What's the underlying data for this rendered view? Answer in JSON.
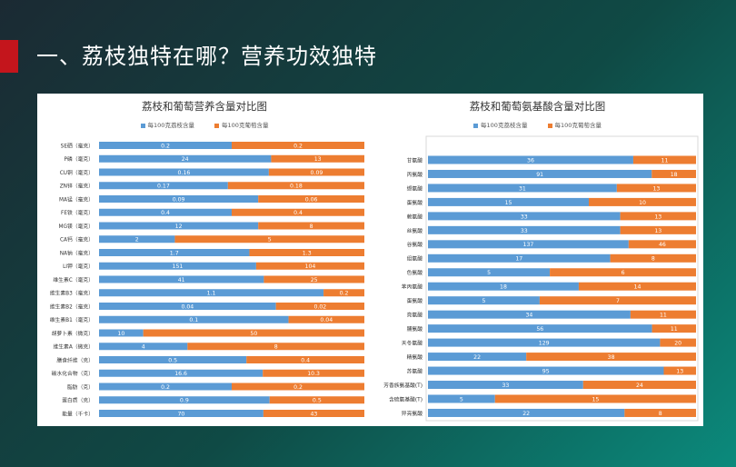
{
  "slide": {
    "title": "一、荔枝独特在哪？营养功效独特"
  },
  "colors": {
    "accent": "#c4151c",
    "blue": "#5b9bd5",
    "orange": "#ed7d31"
  },
  "chart_data": [
    {
      "type": "bar",
      "stacked": "percent",
      "orientation": "horizontal",
      "title": "荔枝和葡萄营养含量对比图",
      "legend_position": "top",
      "categories": [
        "SE硒（毫克）",
        "P磷（毫克）",
        "CU铜（毫克）",
        "ZN锌（毫克）",
        "MA锰（毫克）",
        "FE铁（毫克）",
        "MG镁（毫克）",
        "CA钙（毫克）",
        "NA钠（毫克）",
        "LI钾（毫克）",
        "维生素C（毫克）",
        "维生素B3（毫克）",
        "维生素B2（毫克）",
        "维生素B1（毫克）",
        "胡萝卜素（微克）",
        "维生素A（微克）",
        "膳食纤维（克）",
        "碳水化合物（克）",
        "脂肪（克）",
        "蛋白质（克）",
        "能量（千卡）"
      ],
      "series": [
        {
          "name": "每100克荔枝含量",
          "values": [
            0.2,
            24,
            0.16,
            0.17,
            0.09,
            0.4,
            12,
            2,
            1.7,
            151,
            41,
            1.1,
            0.04,
            0.1,
            10,
            4,
            0.5,
            16.6,
            0.2,
            0.9,
            70
          ]
        },
        {
          "name": "每100克葡萄含量",
          "values": [
            0.2,
            13,
            0.09,
            0.18,
            0.06,
            0.4,
            8,
            5,
            1.3,
            104,
            25,
            0.2,
            0.02,
            0.04,
            50,
            8,
            0.4,
            10.3,
            0.2,
            0.5,
            43
          ]
        }
      ]
    },
    {
      "type": "bar",
      "stacked": "percent",
      "orientation": "horizontal",
      "title": "荔枝和葡萄氨基酸含量对比图",
      "legend_position": "top",
      "categories": [
        "甘氨酸",
        "丙氨酸",
        "缬氨酸",
        "蛋氨酸",
        "赖氨酸",
        "丝氨酸",
        "谷氨酸",
        "组氨酸",
        "色氨酸",
        "苯丙氨酸",
        "蛋氨酸",
        "亮氨酸",
        "脯氨酸",
        "天冬氨酸",
        "精氨酸",
        "苏氨酸",
        "芳香族氨基酸(T)",
        "含硫氨基酸(T)",
        "异亮氨酸"
      ],
      "series": [
        {
          "name": "每100克荔枝含量",
          "values": [
            36,
            91,
            31,
            15,
            33,
            33,
            137,
            17,
            5,
            18,
            5,
            34,
            56,
            129,
            22,
            95,
            33,
            5,
            22
          ]
        },
        {
          "name": "每100克葡萄含量",
          "values": [
            11,
            18,
            13,
            10,
            13,
            13,
            46,
            8,
            6,
            14,
            7,
            11,
            11,
            20,
            38,
            13,
            24,
            15,
            8
          ]
        }
      ]
    }
  ]
}
